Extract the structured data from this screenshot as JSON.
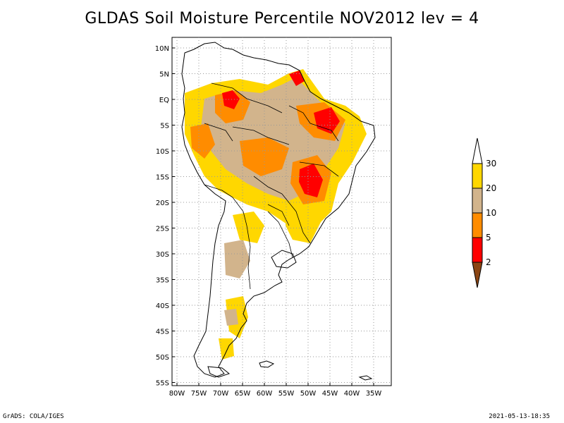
{
  "title": "GLDAS Soil Moisture Percentile NOV2012 lev = 4",
  "footer": {
    "left": "GrADS: COLA/IGES",
    "right": "2021-05-13-18:35"
  },
  "map": {
    "lat_ticks": [
      "10N",
      "5N",
      "EQ",
      "5S",
      "10S",
      "15S",
      "20S",
      "25S",
      "30S",
      "35S",
      "40S",
      "45S",
      "50S",
      "55S"
    ],
    "lon_ticks": [
      "80W",
      "75W",
      "70W",
      "65W",
      "60W",
      "55W",
      "50W",
      "45W",
      "40W",
      "35W"
    ],
    "lat_range": [
      -56,
      12
    ],
    "lon_range": [
      -81,
      -32
    ]
  },
  "legend": {
    "labels": [
      "30",
      "20",
      "10",
      "5",
      "2"
    ],
    "colors": {
      "above": "#ffffff",
      "20_30": "#ffd700",
      "10_20": "#d2b48c",
      "5_10": "#ff8c00",
      "2_5": "#ff0000",
      "below": "#8b4513"
    }
  }
}
